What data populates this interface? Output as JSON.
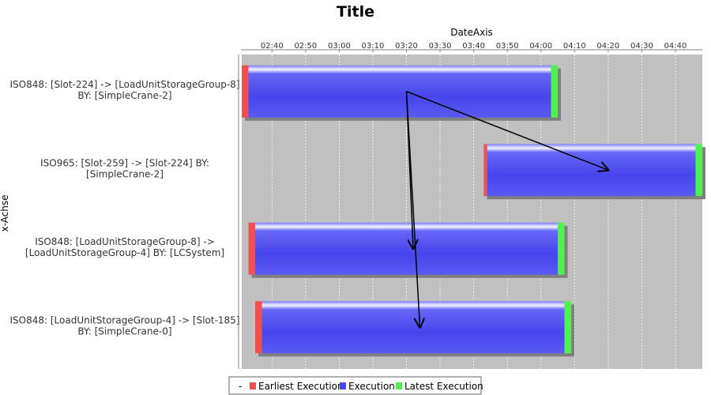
{
  "chart_data": {
    "type": "gantt",
    "title": "Title",
    "xlabel": "DateAxis",
    "ylabel": "x-Achse",
    "xlim": [
      "02:31",
      "04:48"
    ],
    "ticks": [
      "02:40",
      "02:50",
      "03:00",
      "03:10",
      "03:20",
      "03:30",
      "03:40",
      "03:50",
      "04:00",
      "04:10",
      "04:20",
      "04:30",
      "04:40"
    ],
    "tasks": [
      {
        "label_lines": [
          "ISO848: [Slot-224] -> [LoadUnitStorageGroup-8]",
          "BY: [SimpleCrane-2]"
        ],
        "earliest_start": "02:31",
        "start": "02:33",
        "end": "04:03",
        "latest_end": "04:05"
      },
      {
        "label_lines": [
          "ISO965: [Slot-259] -> [Slot-224] BY:",
          "[SimpleCrane-2]"
        ],
        "earliest_start": "03:43",
        "start": "03:44",
        "end": "04:46",
        "latest_end": "04:48"
      },
      {
        "label_lines": [
          "ISO848: [LoadUnitStorageGroup-8] ->",
          "[LoadUnitStorageGroup-4] BY: [LCSystem]"
        ],
        "earliest_start": "02:33",
        "start": "02:35",
        "end": "04:05",
        "latest_end": "04:07"
      },
      {
        "label_lines": [
          "ISO848: [LoadUnitStorageGroup-4] -> [Slot-185]",
          "BY: [SimpleCrane-0]"
        ],
        "earliest_start": "02:35",
        "start": "02:37",
        "end": "04:07",
        "latest_end": "04:09"
      }
    ],
    "dependencies": [
      {
        "from_task": 0,
        "from_time": "03:20",
        "to_task": 1,
        "to_time": "04:20"
      },
      {
        "from_task": 0,
        "from_time": "03:20",
        "to_task": 2,
        "to_time": "03:22"
      },
      {
        "from_task": 0,
        "from_time": "03:20",
        "to_task": 3,
        "to_time": "03:24"
      }
    ],
    "legend": {
      "placement": "bottom",
      "prefix": "-",
      "items": [
        {
          "label": "Earliest Execution",
          "color": "#f05050"
        },
        {
          "label": "Execution",
          "color": "#4a4af0"
        },
        {
          "label": "Latest Execution",
          "color": "#50f050"
        }
      ]
    },
    "colors": {
      "plot_background": "#c0c0c0",
      "gridline": "#ffffff",
      "earliest": "#f05050",
      "execution": "#4a4af0",
      "latest": "#50f050",
      "shadow": "#808080",
      "arrow": "#000000"
    }
  }
}
